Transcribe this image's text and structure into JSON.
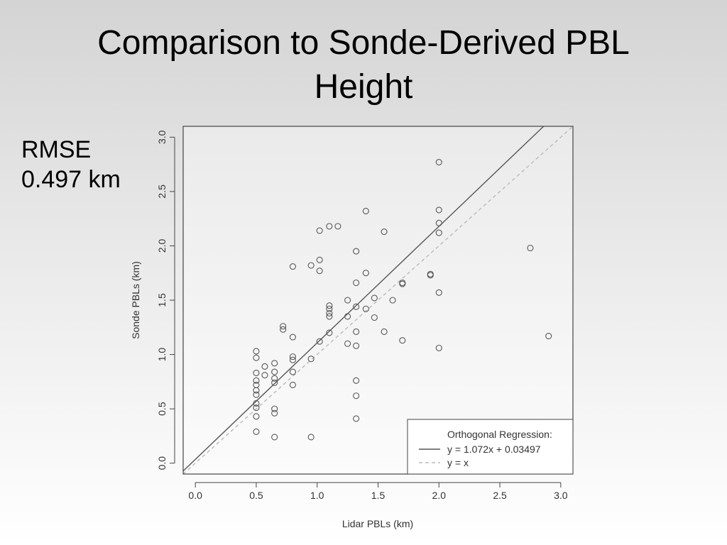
{
  "slide": {
    "title_line1": "Comparison to Sonde-Derived PBL",
    "title_line2": "Height",
    "rmse_label": "RMSE",
    "rmse_value": "0.497 km"
  },
  "chart_data": {
    "type": "scatter",
    "xlabel": "Lidar PBLs (km)",
    "ylabel": "Sonde PBLs (km)",
    "xlim": [
      -0.1,
      3.1
    ],
    "ylim": [
      -0.1,
      3.1
    ],
    "xticks": [
      "0.0",
      "0.5",
      "1.0",
      "1.5",
      "2.0",
      "2.5",
      "3.0"
    ],
    "yticks": [
      "0.0",
      "0.5",
      "1.0",
      "1.5",
      "2.0",
      "2.5",
      "3.0"
    ],
    "grid": false,
    "legend": {
      "placement": "bottom-right",
      "title": "Orthogonal Regression:",
      "entries": [
        {
          "label": "y = 1.072x + 0.03497",
          "style": "solid",
          "color": "#555555"
        },
        {
          "label": "y = x",
          "style": "dashed",
          "color": "#bbbbbb"
        }
      ]
    },
    "lines": [
      {
        "slope": 1.072,
        "intercept": 0.03497,
        "style": "solid",
        "color": "#555555"
      },
      {
        "slope": 1.0,
        "intercept": 0.0,
        "style": "dashed",
        "color": "#bbbbbb"
      }
    ],
    "points": [
      [
        0.5,
        1.03
      ],
      [
        0.5,
        0.97
      ],
      [
        0.5,
        0.83
      ],
      [
        0.5,
        0.76
      ],
      [
        0.5,
        0.72
      ],
      [
        0.5,
        0.67
      ],
      [
        0.5,
        0.63
      ],
      [
        0.5,
        0.55
      ],
      [
        0.5,
        0.51
      ],
      [
        0.5,
        0.43
      ],
      [
        0.5,
        0.29
      ],
      [
        0.57,
        0.89
      ],
      [
        0.57,
        0.81
      ],
      [
        0.65,
        0.92
      ],
      [
        0.65,
        0.84
      ],
      [
        0.65,
        0.78
      ],
      [
        0.65,
        0.74
      ],
      [
        0.65,
        0.5
      ],
      [
        0.65,
        0.46
      ],
      [
        0.65,
        0.24
      ],
      [
        0.72,
        1.26
      ],
      [
        0.72,
        1.23
      ],
      [
        0.8,
        1.81
      ],
      [
        0.8,
        1.16
      ],
      [
        0.8,
        0.98
      ],
      [
        0.8,
        0.95
      ],
      [
        0.8,
        0.84
      ],
      [
        0.8,
        0.72
      ],
      [
        0.95,
        1.82
      ],
      [
        0.95,
        0.96
      ],
      [
        0.95,
        0.24
      ],
      [
        1.02,
        2.14
      ],
      [
        1.02,
        1.87
      ],
      [
        1.02,
        1.77
      ],
      [
        1.02,
        1.12
      ],
      [
        1.1,
        2.18
      ],
      [
        1.17,
        2.18
      ],
      [
        1.1,
        1.45
      ],
      [
        1.1,
        1.42
      ],
      [
        1.1,
        1.38
      ],
      [
        1.1,
        1.35
      ],
      [
        1.1,
        1.2
      ],
      [
        1.25,
        1.5
      ],
      [
        1.25,
        1.35
      ],
      [
        1.25,
        1.1
      ],
      [
        1.32,
        1.95
      ],
      [
        1.32,
        1.66
      ],
      [
        1.32,
        1.44
      ],
      [
        1.32,
        1.21
      ],
      [
        1.32,
        1.08
      ],
      [
        1.32,
        0.76
      ],
      [
        1.32,
        0.62
      ],
      [
        1.32,
        0.41
      ],
      [
        1.4,
        2.32
      ],
      [
        1.4,
        1.75
      ],
      [
        1.4,
        1.42
      ],
      [
        1.47,
        1.52
      ],
      [
        1.47,
        1.34
      ],
      [
        1.55,
        2.13
      ],
      [
        1.55,
        1.21
      ],
      [
        1.62,
        1.5
      ],
      [
        1.7,
        1.66
      ],
      [
        1.7,
        1.65
      ],
      [
        1.7,
        1.13
      ],
      [
        1.93,
        1.74
      ],
      [
        1.93,
        1.73
      ],
      [
        2.0,
        2.77
      ],
      [
        2.0,
        2.33
      ],
      [
        2.0,
        2.21
      ],
      [
        2.0,
        2.12
      ],
      [
        2.0,
        1.57
      ],
      [
        2.0,
        1.06
      ],
      [
        2.75,
        1.98
      ],
      [
        2.9,
        1.17
      ]
    ]
  }
}
